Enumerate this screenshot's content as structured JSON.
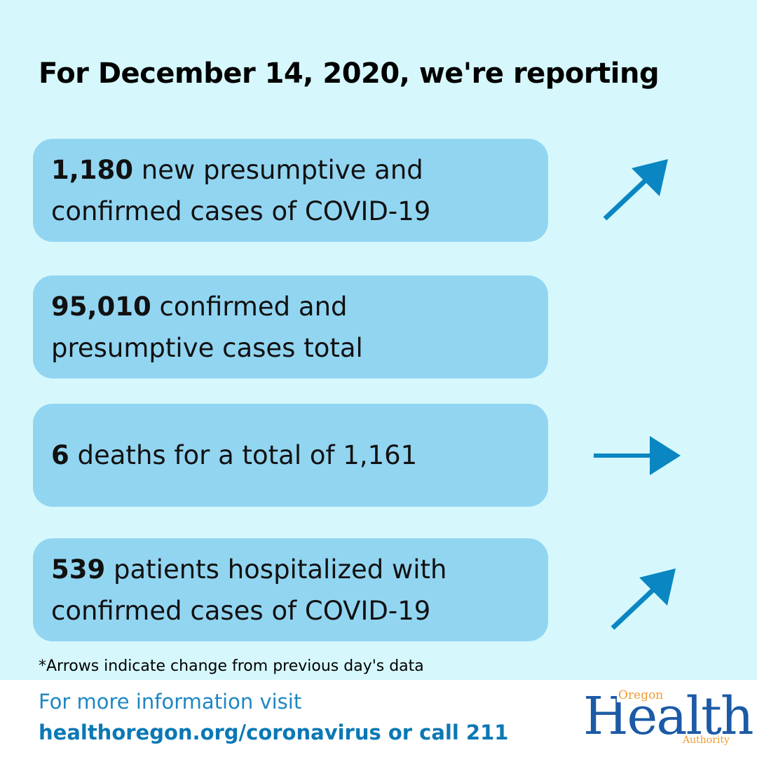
{
  "title": "For December 14, 2020, we're reporting",
  "cards": [
    {
      "number": "1,180",
      "line1": " new presumptive and",
      "line2": "confirmed cases of COVID-19",
      "arrow": "arrow-up-right-icon"
    },
    {
      "number": "95,010",
      "line1": " confirmed and",
      "line2": "presumptive cases total",
      "arrow": ""
    },
    {
      "number": "6",
      "line1": " deaths for a total of 1,161",
      "line2": "",
      "arrow": "arrow-right-icon"
    },
    {
      "number": "539",
      "line1": " patients hospitalized with",
      "line2": "confirmed cases of COVID-19",
      "arrow": "arrow-up-right-icon"
    }
  ],
  "footnote": "*Arrows indicate change from previous day's data",
  "footer": {
    "line1": "For more information visit",
    "line2": "healthoregon.org/coronavirus or call 211"
  },
  "logo": {
    "top": "Oregon",
    "main": "Health",
    "bottom": "Authority"
  },
  "colors": {
    "background": "#d6f8fc",
    "card": "#92d5f1",
    "arrow": "#0a86c2",
    "link": "#0b78b5",
    "logo_blue": "#1c5aa6",
    "logo_orange": "#f29a2e"
  }
}
